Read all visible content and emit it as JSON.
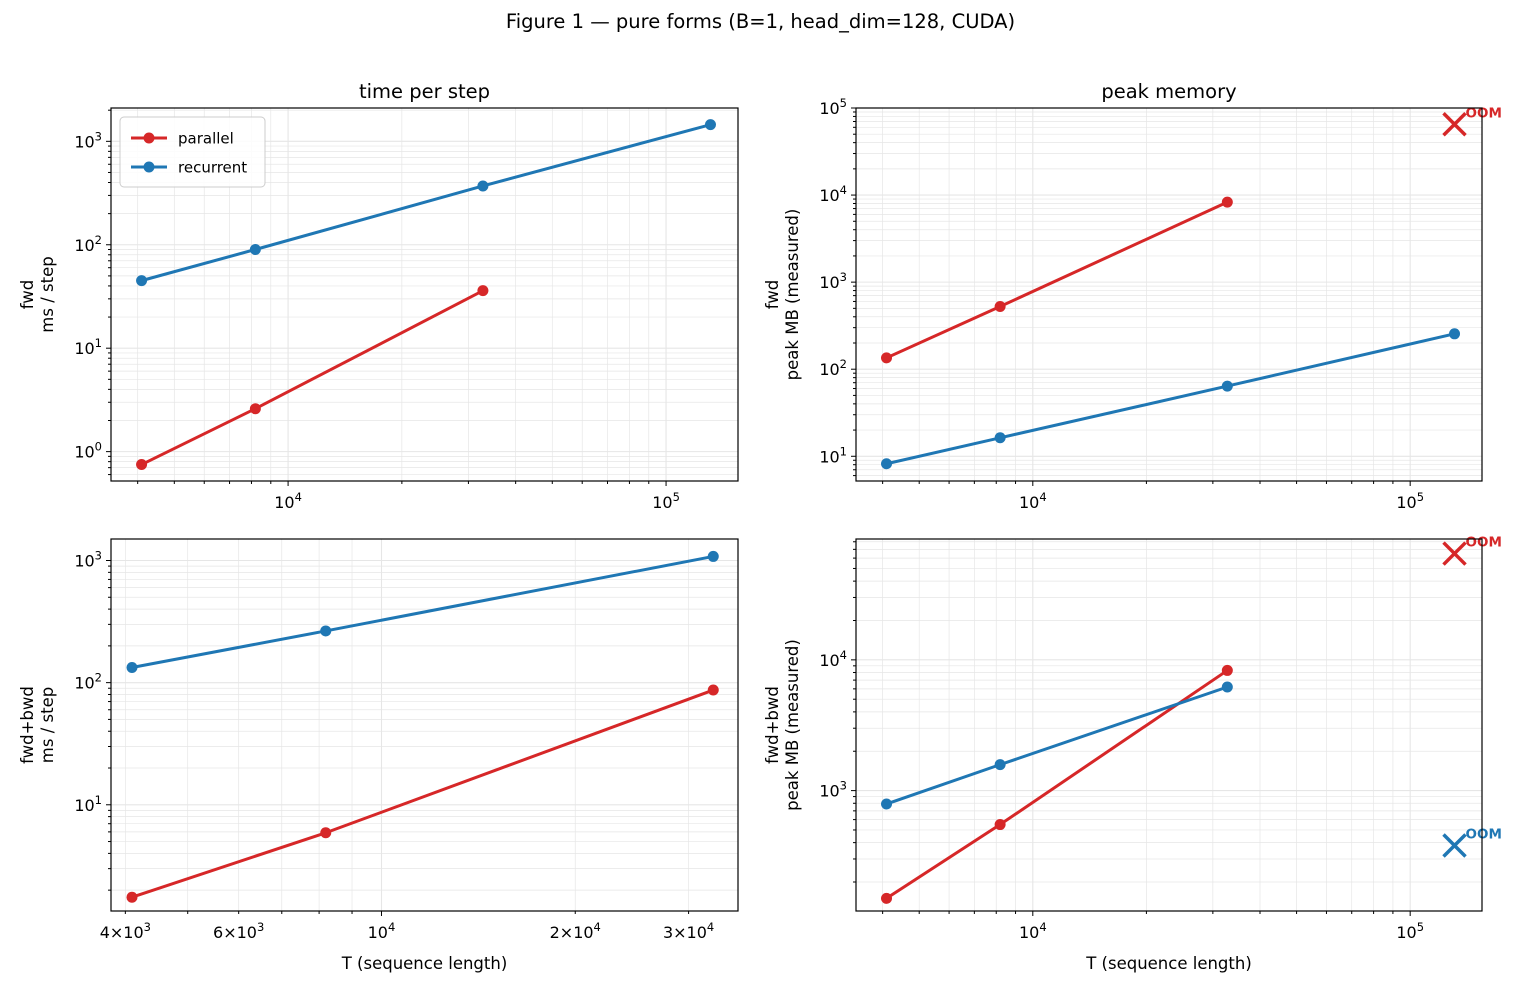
{
  "figure": {
    "suptitle": "Figure 1 — pure forms (B=1, head_dim=128, CUDA)"
  },
  "legend": {
    "entries": [
      {
        "label": "parallel",
        "color": "#d62728"
      },
      {
        "label": "recurrent",
        "color": "#1f77b4"
      }
    ]
  },
  "colors": {
    "parallel": "#d62728",
    "recurrent": "#1f77b4",
    "grid": "#e6e6e6"
  },
  "oom_label": "OOM",
  "chart_data": [
    {
      "id": "fwd-time",
      "type": "line",
      "title": "time per step",
      "ylabel": "fwd\nms / step",
      "xlabel": "",
      "xscale": "log",
      "yscale": "log",
      "xlim": [
        3400,
        155000
      ],
      "ylim": [
        0.52,
        2100
      ],
      "xticks": [
        {
          "v": 10000,
          "base": "10",
          "exp": "4"
        },
        {
          "v": 100000,
          "base": "10",
          "exp": "5"
        }
      ],
      "yticks": [
        {
          "v": 1,
          "base": "10",
          "exp": "0"
        },
        {
          "v": 10,
          "base": "10",
          "exp": "1"
        },
        {
          "v": 100,
          "base": "10",
          "exp": "2"
        },
        {
          "v": 1000,
          "base": "10",
          "exp": "3"
        }
      ],
      "legend": "upper left",
      "grid": true,
      "series": [
        {
          "name": "parallel",
          "color": "#d62728",
          "x": [
            4096,
            8192,
            32768
          ],
          "y": [
            0.75,
            2.6,
            36
          ]
        },
        {
          "name": "recurrent",
          "color": "#1f77b4",
          "x": [
            4096,
            8192,
            32768,
            131072
          ],
          "y": [
            45,
            90,
            370,
            1450
          ]
        }
      ],
      "oom": []
    },
    {
      "id": "fwd-mem",
      "type": "line",
      "title": "peak memory",
      "ylabel": "fwd\npeak MB (measured)",
      "xlabel": "",
      "xscale": "log",
      "yscale": "log",
      "xlim": [
        3400,
        155000
      ],
      "ylim": [
        5.2,
        100000
      ],
      "xticks": [
        {
          "v": 10000,
          "base": "10",
          "exp": "4"
        },
        {
          "v": 100000,
          "base": "10",
          "exp": "5"
        }
      ],
      "yticks": [
        {
          "v": 10,
          "base": "10",
          "exp": "1"
        },
        {
          "v": 100,
          "base": "10",
          "exp": "2"
        },
        {
          "v": 1000,
          "base": "10",
          "exp": "3"
        },
        {
          "v": 10000,
          "base": "10",
          "exp": "4"
        },
        {
          "v": 100000,
          "base": "10",
          "exp": "5"
        }
      ],
      "grid": true,
      "series": [
        {
          "name": "parallel",
          "color": "#d62728",
          "x": [
            4096,
            8192,
            32768
          ],
          "y": [
            135,
            525,
            8300
          ]
        },
        {
          "name": "recurrent",
          "color": "#1f77b4",
          "x": [
            4096,
            8192,
            32768,
            131072
          ],
          "y": [
            8.2,
            16.3,
            64,
            255
          ]
        }
      ],
      "oom": [
        {
          "series": "parallel",
          "color": "#d62728",
          "x": 131072,
          "y": 65000,
          "label": "OOM"
        }
      ]
    },
    {
      "id": "fwdbwd-time",
      "type": "line",
      "title": "",
      "ylabel": "fwd+bwd\nms / step",
      "xlabel": "T (sequence length)",
      "xscale": "log",
      "yscale": "log",
      "xlim": [
        3800,
        35800
      ],
      "ylim": [
        1.35,
        1500
      ],
      "xticks": [
        {
          "v": 4000,
          "mant": "4",
          "base": "10",
          "exp": "3"
        },
        {
          "v": 6000,
          "mant": "6",
          "base": "10",
          "exp": "3"
        },
        {
          "v": 10000,
          "base": "10",
          "exp": "4"
        },
        {
          "v": 20000,
          "mant": "2",
          "base": "10",
          "exp": "4"
        },
        {
          "v": 30000,
          "mant": "3",
          "base": "10",
          "exp": "4"
        }
      ],
      "yticks": [
        {
          "v": 10,
          "base": "10",
          "exp": "1"
        },
        {
          "v": 100,
          "base": "10",
          "exp": "2"
        },
        {
          "v": 1000,
          "base": "10",
          "exp": "3"
        }
      ],
      "grid": true,
      "series": [
        {
          "name": "parallel",
          "color": "#d62728",
          "x": [
            4096,
            8192,
            32768
          ],
          "y": [
            1.75,
            5.9,
            87
          ]
        },
        {
          "name": "recurrent",
          "color": "#1f77b4",
          "x": [
            4096,
            8192,
            32768
          ],
          "y": [
            133,
            265,
            1080
          ]
        }
      ],
      "oom": []
    },
    {
      "id": "fwdbwd-mem",
      "type": "line",
      "title": "",
      "ylabel": "fwd+bwd\npeak MB (measured)",
      "xlabel": "T (sequence length)",
      "xscale": "log",
      "yscale": "log",
      "xlim": [
        3400,
        155000
      ],
      "ylim": [
        120,
        84000
      ],
      "xticks": [
        {
          "v": 10000,
          "base": "10",
          "exp": "4"
        },
        {
          "v": 100000,
          "base": "10",
          "exp": "5"
        }
      ],
      "yticks": [
        {
          "v": 1000,
          "base": "10",
          "exp": "3"
        },
        {
          "v": 10000,
          "base": "10",
          "exp": "4"
        }
      ],
      "grid": true,
      "series": [
        {
          "name": "parallel",
          "color": "#d62728",
          "x": [
            4096,
            8192,
            32768
          ],
          "y": [
            150,
            550,
            8300
          ]
        },
        {
          "name": "recurrent",
          "color": "#1f77b4",
          "x": [
            4096,
            8192,
            32768
          ],
          "y": [
            790,
            1580,
            6200
          ]
        }
      ],
      "oom": [
        {
          "series": "parallel",
          "color": "#d62728",
          "x": 131072,
          "y": 65000,
          "label": "OOM"
        },
        {
          "series": "recurrent",
          "color": "#1f77b4",
          "x": 131072,
          "y": 380,
          "label": "OOM"
        }
      ]
    }
  ]
}
